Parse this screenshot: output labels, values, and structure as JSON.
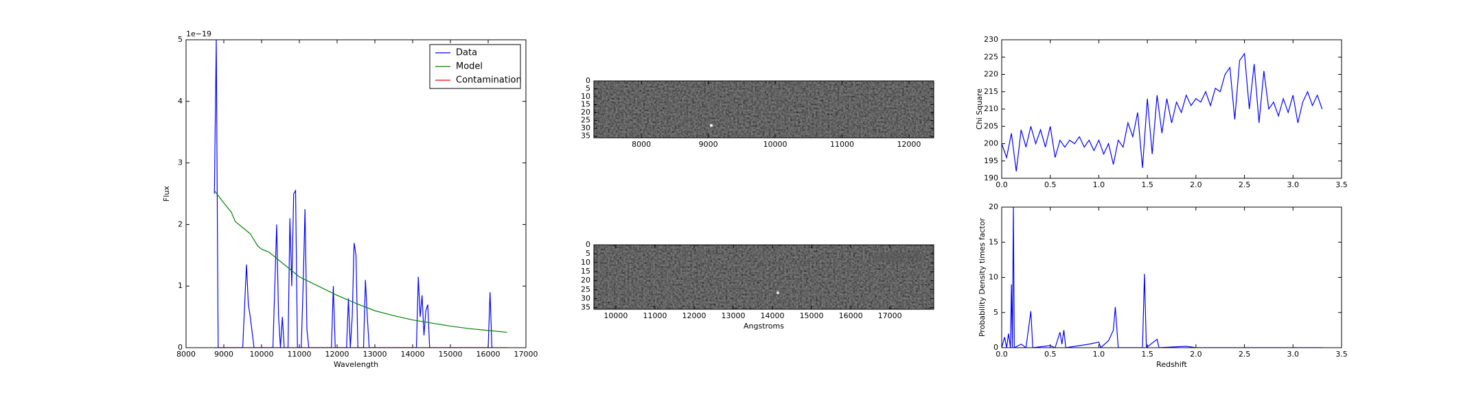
{
  "chart_data": [
    {
      "type": "line",
      "offset_label": "1e−19",
      "xlabel": "Wavelength",
      "ylabel": "Flux",
      "xlim": [
        8000,
        17000
      ],
      "xticks": [
        8000,
        9000,
        10000,
        11000,
        12000,
        13000,
        14000,
        15000,
        16000,
        17000
      ],
      "ylim": [
        0,
        5
      ],
      "yticks": [
        0,
        1,
        2,
        3,
        4,
        5
      ],
      "legend": "upper right",
      "series": [
        {
          "name": "Data",
          "color": "#0000ff",
          "x": [
            8750,
            8800,
            8850,
            9500,
            9600,
            9650,
            9700,
            9800,
            10300,
            10400,
            10450,
            10500,
            10550,
            10600,
            10700,
            10750,
            10800,
            10850,
            10900,
            10950,
            11050,
            11100,
            11150,
            11200,
            11250,
            11850,
            11900,
            11950,
            12250,
            12300,
            12350,
            12400,
            12450,
            12500,
            12550,
            12700,
            12750,
            12800,
            12850,
            14100,
            14150,
            14200,
            14250,
            14300,
            14350,
            14400,
            14450,
            16000,
            16050,
            16100
          ],
          "values": [
            2.5,
            5.0,
            0,
            0,
            1.35,
            0.7,
            0.5,
            0,
            0,
            2.0,
            0.5,
            0,
            0.5,
            0,
            0,
            2.1,
            1.0,
            2.5,
            2.55,
            0,
            0,
            1.0,
            2.25,
            0.3,
            0,
            0,
            1.0,
            0,
            0,
            0.8,
            0,
            0.5,
            1.7,
            1.5,
            0,
            0,
            1.1,
            0.5,
            0,
            0,
            1.15,
            0.5,
            0.85,
            0.2,
            0.6,
            0.7,
            0,
            0,
            0.9,
            0
          ]
        },
        {
          "name": "Model",
          "color": "#008000",
          "x": [
            8750,
            9000,
            9200,
            9300,
            9500,
            9700,
            9800,
            9850,
            9900,
            10000,
            10200,
            10500,
            10800,
            11000,
            11500,
            12000,
            12500,
            13000,
            13500,
            14000,
            14500,
            15000,
            15500,
            16000,
            16500
          ],
          "values": [
            2.55,
            2.35,
            2.2,
            2.05,
            1.95,
            1.85,
            1.75,
            1.7,
            1.65,
            1.6,
            1.55,
            1.4,
            1.25,
            1.15,
            1.0,
            0.85,
            0.72,
            0.6,
            0.52,
            0.45,
            0.4,
            0.35,
            0.31,
            0.28,
            0.25
          ]
        },
        {
          "name": "Contamination",
          "color": "#ff0000",
          "x": [
            8750,
            16500
          ],
          "values": [
            0,
            0
          ]
        }
      ]
    },
    {
      "type": "image",
      "xlim": [
        7290,
        12370
      ],
      "xticks": [
        8000,
        9000,
        10000,
        11000,
        12000
      ],
      "ylim": [
        36,
        0
      ],
      "yticks": [
        0,
        5,
        10,
        15,
        20,
        25,
        30,
        35
      ]
    },
    {
      "type": "image",
      "xlabel": "Angstroms",
      "xlim": [
        9440,
        18120
      ],
      "xticks": [
        10000,
        11000,
        12000,
        13000,
        14000,
        15000,
        16000,
        17000
      ],
      "ylim": [
        36,
        0
      ],
      "yticks": [
        0,
        5,
        10,
        15,
        20,
        25,
        30,
        35
      ]
    },
    {
      "type": "line",
      "ylabel": "Chi Square",
      "xlim": [
        0,
        3.5
      ],
      "xticks": [
        {
          "value": 0,
          "label": "0.0"
        },
        0.5,
        {
          "value": 1,
          "label": "1.0"
        },
        1.5,
        {
          "value": 2,
          "label": "2.0"
        },
        2.5,
        {
          "value": 3,
          "label": "3.0"
        },
        3.5
      ],
      "ylim": [
        190,
        230
      ],
      "yticks": [
        190,
        195,
        200,
        205,
        210,
        215,
        220,
        225,
        230
      ],
      "series": [
        {
          "color": "#0000ff",
          "x": [
            0,
            0.05,
            0.1,
            0.15,
            0.2,
            0.25,
            0.3,
            0.35,
            0.4,
            0.45,
            0.5,
            0.55,
            0.6,
            0.65,
            0.7,
            0.75,
            0.8,
            0.85,
            0.9,
            0.95,
            1.0,
            1.05,
            1.1,
            1.15,
            1.2,
            1.25,
            1.3,
            1.35,
            1.4,
            1.45,
            1.5,
            1.55,
            1.6,
            1.65,
            1.7,
            1.75,
            1.8,
            1.85,
            1.9,
            1.95,
            2.0,
            2.05,
            2.1,
            2.15,
            2.2,
            2.25,
            2.3,
            2.35,
            2.4,
            2.45,
            2.5,
            2.55,
            2.6,
            2.65,
            2.7,
            2.75,
            2.8,
            2.85,
            2.9,
            2.95,
            3.0,
            3.05,
            3.1,
            3.15,
            3.2,
            3.25,
            3.3
          ],
          "values": [
            200,
            196,
            203,
            192,
            204,
            199,
            205,
            200,
            204,
            199,
            205,
            196,
            201,
            199,
            201,
            200,
            202,
            199,
            201,
            198,
            201,
            197,
            200,
            194,
            201,
            199,
            206,
            202,
            209,
            193,
            213,
            197,
            214,
            203,
            213,
            206,
            212,
            209,
            214,
            211,
            213,
            212,
            215,
            211,
            216,
            215,
            220,
            222,
            207,
            224,
            226,
            210,
            223,
            206,
            221,
            210,
            212,
            208,
            213,
            209,
            214,
            206,
            212,
            215,
            211,
            214,
            210
          ]
        }
      ]
    },
    {
      "type": "line",
      "xlabel": "Redshift",
      "ylabel": "Probability Density times factor",
      "xlim": [
        0,
        3.5
      ],
      "xticks": [
        {
          "value": 0,
          "label": "0.0"
        },
        0.5,
        {
          "value": 1,
          "label": "1.0"
        },
        1.5,
        {
          "value": 2,
          "label": "2.0"
        },
        2.5,
        {
          "value": 3,
          "label": "3.0"
        },
        3.5
      ],
      "ylim": [
        0,
        20
      ],
      "yticks": [
        0,
        5,
        10,
        15,
        20
      ],
      "series": [
        {
          "color": "#0000ff",
          "x": [
            0,
            0.03,
            0.05,
            0.07,
            0.09,
            0.1,
            0.11,
            0.12,
            0.13,
            0.2,
            0.25,
            0.3,
            0.32,
            0.5,
            0.55,
            0.6,
            0.62,
            0.64,
            0.66,
            0.9,
            1.0,
            1.02,
            1.1,
            1.15,
            1.17,
            1.2,
            1.45,
            1.47,
            1.49,
            1.6,
            1.62,
            1.9,
            2.0,
            3.3
          ],
          "values": [
            0,
            1.5,
            0,
            2,
            0,
            9,
            0,
            20,
            0,
            0.5,
            0,
            5.2,
            0,
            0.3,
            0,
            2.2,
            0.5,
            2.5,
            0,
            0.5,
            0.8,
            0,
            1,
            2.5,
            5.8,
            0,
            0,
            10.5,
            0,
            1.2,
            0,
            0.2,
            0,
            0
          ]
        }
      ]
    }
  ]
}
